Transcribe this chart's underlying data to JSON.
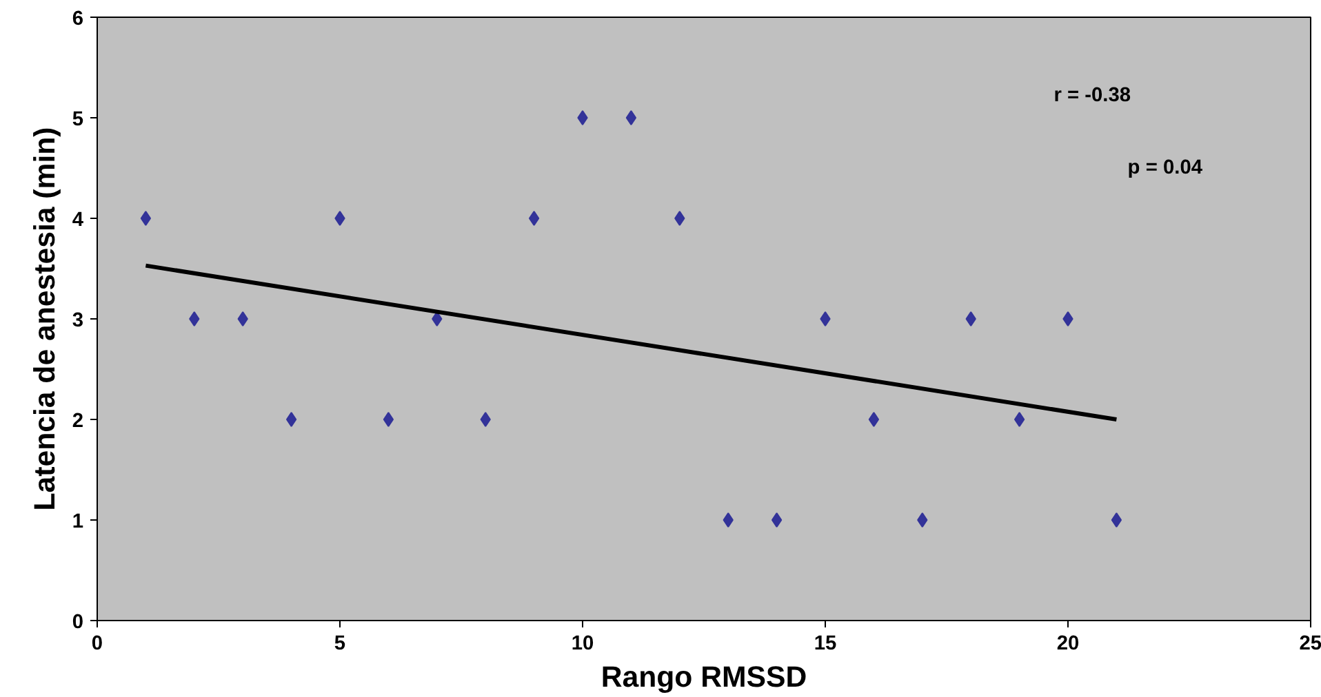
{
  "chart_data": {
    "type": "scatter",
    "xlabel": "Rango RMSSD",
    "ylabel": "Latencia de anestesia (min)",
    "xlim": [
      0,
      25
    ],
    "xticks": [
      0,
      5,
      10,
      15,
      20,
      25
    ],
    "ylim": [
      0,
      6
    ],
    "yticks": [
      0,
      1,
      2,
      3,
      4,
      5,
      6
    ],
    "grid": false,
    "annotations": [
      "r = -0.38",
      "p = 0.04"
    ],
    "series": [
      {
        "marker": "diamond",
        "color": "#333399",
        "x": [
          1,
          2,
          3,
          4,
          5,
          6,
          7,
          8,
          9,
          10,
          11,
          12,
          13,
          14,
          15,
          16,
          17,
          18,
          19,
          20,
          21
        ],
        "values": [
          4,
          3,
          3,
          2,
          4,
          2,
          3,
          2,
          4,
          5,
          5,
          4,
          1,
          1,
          3,
          2,
          1,
          3,
          2,
          3,
          1
        ]
      },
      {
        "type": "line",
        "color": "#000000",
        "x": [
          1,
          21
        ],
        "values": [
          3.53,
          2.0
        ]
      }
    ]
  }
}
